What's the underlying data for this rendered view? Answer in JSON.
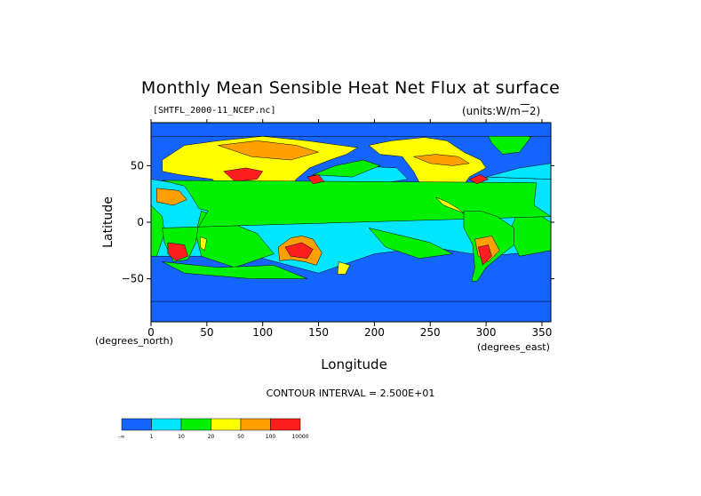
{
  "chart_data": {
    "type": "heatmap",
    "title": "Monthly Mean Sensible Heat Net Flux at surface",
    "source_label": "[SHTFL_2000-11_NCEP.nc]",
    "units_label": "(units:W/m^-2)",
    "xlabel": "Longitude",
    "ylabel": "Latitude",
    "x_unit": "(degrees_east)",
    "y_unit": "(degrees_north)",
    "xlim": [
      0,
      358
    ],
    "ylim": [
      -88,
      88
    ],
    "x_ticks": [
      0,
      50,
      100,
      150,
      200,
      250,
      300,
      350
    ],
    "y_ticks": [
      50,
      0,
      -50
    ],
    "contour_interval": "CONTOUR INTERVAL = 2.500E+01",
    "color_levels": [
      {
        "label": "-∞",
        "color": "#1464ff"
      },
      {
        "label": "1",
        "color": "#00e6ff"
      },
      {
        "label": "10",
        "color": "#00f000"
      },
      {
        "label": "20",
        "color": "#ffff00"
      },
      {
        "label": "50",
        "color": "#ffa000"
      },
      {
        "label": "100",
        "color": "#ff1e1e"
      },
      {
        "label": "10000",
        "color": ""
      }
    ],
    "map_colors": {
      "ocean_deep": "#1464ff",
      "ocean_mid": "#00e6ff",
      "green": "#00f000",
      "yellow": "#ffff00",
      "orange": "#ffa000",
      "red": "#ff1e1e",
      "dark": "#a00000"
    }
  }
}
